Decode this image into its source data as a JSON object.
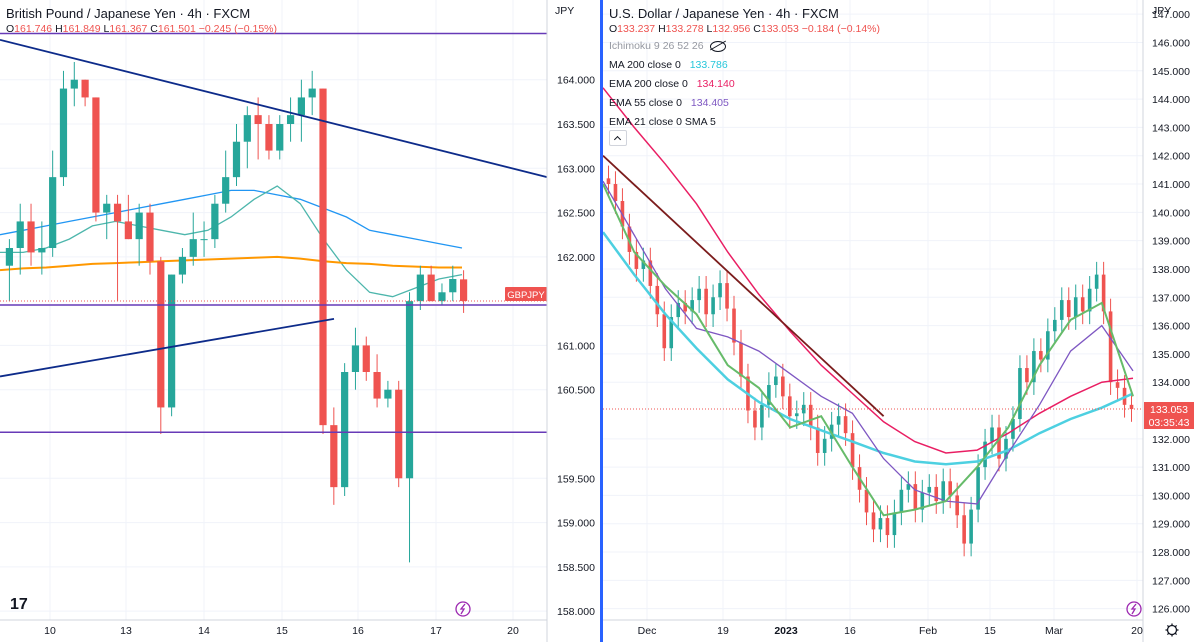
{
  "left": {
    "title": "British Pound / Japanese Yen · 4h · FXCM",
    "ohlc": {
      "o": "161.746",
      "h": "161.849",
      "l": "161.367",
      "c": "161.501",
      "chg": "−0.245 (−0.15%)"
    },
    "currency": "JPY",
    "x_labels": [
      "10",
      "13",
      "14",
      "15",
      "16",
      "17",
      "20"
    ],
    "price_axis": [
      "164.000",
      "163.500",
      "163.000",
      "162.500",
      "162.000",
      "161.000",
      "160.500",
      "159.500",
      "159.000",
      "158.500",
      "158.000"
    ],
    "markers": {
      "upper_level": "164.522",
      "symbol": "GBPJPY",
      "last": "161.501",
      "countdown": "03:35:43",
      "mid_level": "161.457",
      "lower_level": "160.020"
    },
    "logo": "17"
  },
  "right": {
    "title": "U.S. Dollar / Japanese Yen · 4h · FXCM",
    "ohlc": {
      "o": "133.237",
      "h": "133.278",
      "l": "132.956",
      "c": "133.053",
      "chg": "−0.184 (−0.14%)"
    },
    "currency": "JPY",
    "indicators": [
      {
        "label": "Ichimoku 9 26 52 26",
        "value": ""
      },
      {
        "label": "MA 200 close 0",
        "value": "133.786"
      },
      {
        "label": "EMA 200 close 0",
        "value": "134.140"
      },
      {
        "label": "EMA 55 close 0",
        "value": "134.405"
      },
      {
        "label": "EMA 21 close 0 SMA 5",
        "value": ""
      }
    ],
    "x_labels": [
      "Dec",
      "19",
      "2023",
      "16",
      "Feb",
      "15",
      "Mar",
      "20"
    ],
    "price_axis": [
      "147.000",
      "146.000",
      "145.000",
      "144.000",
      "143.000",
      "142.000",
      "141.000",
      "140.000",
      "139.000",
      "138.000",
      "137.000",
      "136.000",
      "135.000",
      "134.000",
      "132.000",
      "131.000",
      "130.000",
      "129.000",
      "128.000",
      "127.000",
      "126.000"
    ],
    "markers": {
      "last": "133.053",
      "countdown": "03:35:43"
    }
  },
  "colors": {
    "up": "#26a69a",
    "down": "#ef5350",
    "level": "#673ab7",
    "trend": "#0d2b8a",
    "ma_blue": "#2196f3",
    "ma_teal": "#4db6ac",
    "ma_orange": "#ff9800",
    "ma200": "#4dd0e1",
    "ema200": "#e91e63",
    "ema55": "#7e57c2",
    "ema21": "#66bb6a",
    "usd_trend": "#7b1c1c"
  },
  "chart_data": [
    {
      "type": "candlestick",
      "pair": "GBPJPY",
      "timeframe": "4h",
      "ylim": [
        157.9,
        164.9
      ],
      "levels": [
        164.522,
        161.457,
        160.02
      ],
      "candles": [
        {
          "o": 161.9,
          "h": 162.2,
          "l": 161.5,
          "c": 162.1
        },
        {
          "o": 162.1,
          "h": 162.6,
          "l": 161.8,
          "c": 162.4
        },
        {
          "o": 162.4,
          "h": 162.6,
          "l": 161.9,
          "c": 162.05
        },
        {
          "o": 162.05,
          "h": 162.4,
          "l": 161.8,
          "c": 162.1
        },
        {
          "o": 162.1,
          "h": 163.2,
          "l": 162.0,
          "c": 162.9
        },
        {
          "o": 162.9,
          "h": 164.1,
          "l": 162.8,
          "c": 163.9
        },
        {
          "o": 163.9,
          "h": 164.2,
          "l": 163.7,
          "c": 164.0
        },
        {
          "o": 164.0,
          "h": 164.0,
          "l": 163.7,
          "c": 163.8
        },
        {
          "o": 163.8,
          "h": 163.8,
          "l": 162.4,
          "c": 162.5
        },
        {
          "o": 162.5,
          "h": 162.7,
          "l": 162.2,
          "c": 162.6
        },
        {
          "o": 162.6,
          "h": 162.7,
          "l": 161.5,
          "c": 162.4
        },
        {
          "o": 162.4,
          "h": 162.7,
          "l": 162.2,
          "c": 162.2
        },
        {
          "o": 162.2,
          "h": 162.6,
          "l": 161.9,
          "c": 162.5
        },
        {
          "o": 162.5,
          "h": 162.6,
          "l": 161.8,
          "c": 161.95
        },
        {
          "o": 161.95,
          "h": 162.0,
          "l": 160.0,
          "c": 160.3
        },
        {
          "o": 160.3,
          "h": 161.8,
          "l": 160.2,
          "c": 161.8
        },
        {
          "o": 161.8,
          "h": 162.1,
          "l": 161.7,
          "c": 162.0
        },
        {
          "o": 162.0,
          "h": 162.5,
          "l": 161.9,
          "c": 162.2
        },
        {
          "o": 162.2,
          "h": 162.4,
          "l": 162.0,
          "c": 162.2
        },
        {
          "o": 162.2,
          "h": 162.7,
          "l": 162.1,
          "c": 162.6
        },
        {
          "o": 162.6,
          "h": 163.2,
          "l": 162.5,
          "c": 162.9
        },
        {
          "o": 162.9,
          "h": 163.5,
          "l": 162.8,
          "c": 163.3
        },
        {
          "o": 163.3,
          "h": 163.7,
          "l": 163.0,
          "c": 163.6
        },
        {
          "o": 163.6,
          "h": 163.8,
          "l": 163.1,
          "c": 163.5
        },
        {
          "o": 163.5,
          "h": 163.6,
          "l": 163.1,
          "c": 163.2
        },
        {
          "o": 163.2,
          "h": 163.6,
          "l": 163.1,
          "c": 163.5
        },
        {
          "o": 163.5,
          "h": 163.8,
          "l": 163.3,
          "c": 163.6
        },
        {
          "o": 163.6,
          "h": 164.0,
          "l": 163.3,
          "c": 163.8
        },
        {
          "o": 163.8,
          "h": 164.1,
          "l": 163.6,
          "c": 163.9
        },
        {
          "o": 163.9,
          "h": 163.9,
          "l": 160.0,
          "c": 160.1
        },
        {
          "o": 160.1,
          "h": 160.3,
          "l": 159.2,
          "c": 159.4
        },
        {
          "o": 159.4,
          "h": 160.8,
          "l": 159.3,
          "c": 160.7
        },
        {
          "o": 160.7,
          "h": 161.2,
          "l": 160.5,
          "c": 161.0
        },
        {
          "o": 161.0,
          "h": 161.1,
          "l": 160.6,
          "c": 160.7
        },
        {
          "o": 160.7,
          "h": 160.9,
          "l": 160.3,
          "c": 160.4
        },
        {
          "o": 160.4,
          "h": 160.6,
          "l": 160.3,
          "c": 160.5
        },
        {
          "o": 160.5,
          "h": 160.6,
          "l": 159.4,
          "c": 159.5
        },
        {
          "o": 159.5,
          "h": 161.6,
          "l": 158.55,
          "c": 161.5
        },
        {
          "o": 161.5,
          "h": 161.9,
          "l": 161.4,
          "c": 161.8
        },
        {
          "o": 161.8,
          "h": 161.9,
          "l": 161.5,
          "c": 161.5
        },
        {
          "o": 161.5,
          "h": 161.7,
          "l": 161.45,
          "c": 161.6
        },
        {
          "o": 161.6,
          "h": 161.9,
          "l": 161.5,
          "c": 161.75
        },
        {
          "o": 161.746,
          "h": 161.849,
          "l": 161.367,
          "c": 161.501
        }
      ],
      "moving_averages": [
        {
          "values": [
            162.25,
            162.3,
            162.35,
            162.4,
            162.45,
            162.5,
            162.55,
            162.6,
            162.65,
            162.7,
            162.75,
            162.75,
            162.7,
            162.65,
            162.55,
            162.45,
            162.3,
            162.25,
            162.2,
            162.15,
            162.1
          ]
        },
        {
          "values": [
            162.05,
            162.05,
            162.1,
            162.2,
            162.35,
            162.4,
            162.35,
            162.3,
            162.25,
            162.3,
            162.45,
            162.65,
            162.8,
            162.6,
            162.2,
            161.85,
            161.6,
            161.55,
            161.65,
            161.75,
            161.8
          ]
        },
        {
          "values": [
            161.85,
            161.87,
            161.88,
            161.9,
            161.92,
            161.93,
            161.94,
            161.95,
            161.96,
            161.97,
            161.98,
            161.99,
            162.0,
            161.98,
            161.95,
            161.93,
            161.92,
            161.9,
            161.89,
            161.88,
            161.88
          ]
        }
      ]
    },
    {
      "type": "candlestick",
      "pair": "USDJPY",
      "timeframe": "4h",
      "ylim": [
        125.6,
        147.5
      ],
      "closes": [
        141.0,
        140.4,
        139.5,
        138.6,
        138.0,
        138.3,
        137.4,
        136.4,
        135.2,
        136.3,
        136.8,
        136.5,
        136.9,
        137.3,
        136.4,
        137.0,
        137.5,
        136.6,
        135.4,
        134.2,
        133.0,
        132.4,
        133.2,
        133.9,
        134.2,
        133.5,
        132.8,
        132.9,
        133.2,
        132.4,
        131.5,
        132.0,
        132.5,
        132.8,
        132.2,
        131.0,
        130.2,
        129.4,
        128.8,
        129.2,
        128.6,
        129.4,
        130.2,
        130.4,
        129.5,
        130.1,
        130.3,
        129.8,
        130.5,
        130.0,
        129.3,
        128.3,
        129.5,
        131.0,
        131.9,
        132.4,
        131.3,
        132.0,
        132.7,
        134.5,
        134.0,
        135.1,
        134.8,
        135.8,
        136.2,
        136.9,
        136.3,
        137.0,
        136.5,
        137.3,
        137.8,
        136.5,
        134.0,
        133.8,
        133.2,
        133.05
      ],
      "lines": [
        {
          "values": [
            139.3,
            137.8,
            136.4,
            135.2,
            134.1,
            133.3,
            132.7,
            132.3,
            131.9,
            131.5,
            131.2,
            131.1,
            131.2,
            131.6,
            132.2,
            132.7,
            133.1,
            133.6
          ]
        },
        {
          "values": [
            144.4,
            143.0,
            141.7,
            140.3,
            138.6,
            137.1,
            135.8,
            134.6,
            133.6,
            132.6,
            131.9,
            131.5,
            131.6,
            132.2,
            132.9,
            133.5,
            134.0,
            134.14
          ]
        },
        {
          "values": [
            141.1,
            139.2,
            137.3,
            135.9,
            135.6,
            135.1,
            134.3,
            133.5,
            132.9,
            131.3,
            130.2,
            129.8,
            129.7,
            131.5,
            133.2,
            135.1,
            136.0,
            134.4
          ]
        },
        {
          "values": [
            141.0,
            138.6,
            137.4,
            136.4,
            134.6,
            133.8,
            132.4,
            132.8,
            131.0,
            129.3,
            129.5,
            129.8,
            131.0,
            132.4,
            134.6,
            136.2,
            136.8,
            133.5
          ]
        }
      ],
      "trendline": [
        [
          0,
          142.0
        ],
        [
          0.49,
          132.8
        ]
      ]
    }
  ]
}
